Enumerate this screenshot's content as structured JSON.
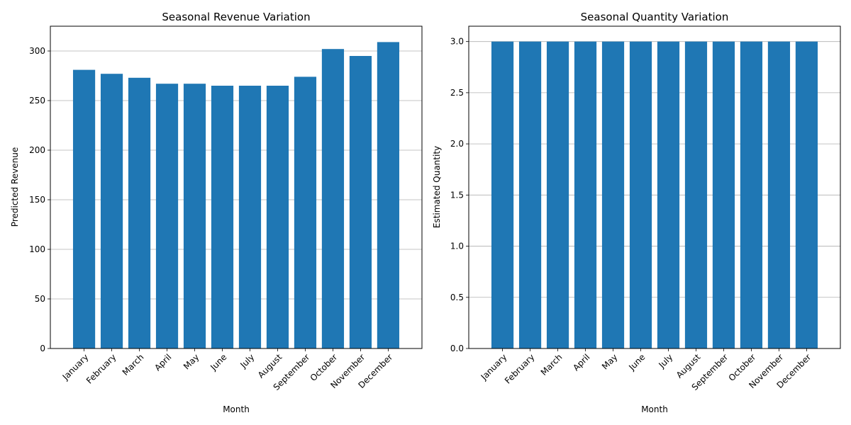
{
  "chart_data": [
    {
      "type": "bar",
      "title": "Seasonal Revenue Variation",
      "xlabel": "Month",
      "ylabel": "Predicted Revenue",
      "categories": [
        "January",
        "February",
        "March",
        "April",
        "May",
        "June",
        "July",
        "August",
        "September",
        "October",
        "November",
        "December"
      ],
      "values": [
        281,
        277,
        273,
        267,
        267,
        265,
        265,
        265,
        274,
        302,
        295,
        309
      ],
      "ylim": [
        0,
        325
      ],
      "yticks": [
        0,
        50,
        100,
        150,
        200,
        250,
        300
      ],
      "ytick_labels": [
        "0",
        "50",
        "100",
        "150",
        "200",
        "250",
        "300"
      ],
      "grid": "y",
      "legend": "none",
      "bar_color": "#1f77b4"
    },
    {
      "type": "bar",
      "title": "Seasonal Quantity Variation",
      "xlabel": "Month",
      "ylabel": "Estimated Quantity",
      "categories": [
        "January",
        "February",
        "March",
        "April",
        "May",
        "June",
        "July",
        "August",
        "September",
        "October",
        "November",
        "December"
      ],
      "values": [
        3,
        3,
        3,
        3,
        3,
        3,
        3,
        3,
        3,
        3,
        3,
        3
      ],
      "ylim": [
        0,
        3.15
      ],
      "yticks": [
        0,
        0.5,
        1.0,
        1.5,
        2.0,
        2.5,
        3.0
      ],
      "ytick_labels": [
        "0.0",
        "0.5",
        "1.0",
        "1.5",
        "2.0",
        "2.5",
        "3.0"
      ],
      "grid": "y",
      "legend": "none",
      "bar_color": "#1f77b4"
    }
  ]
}
